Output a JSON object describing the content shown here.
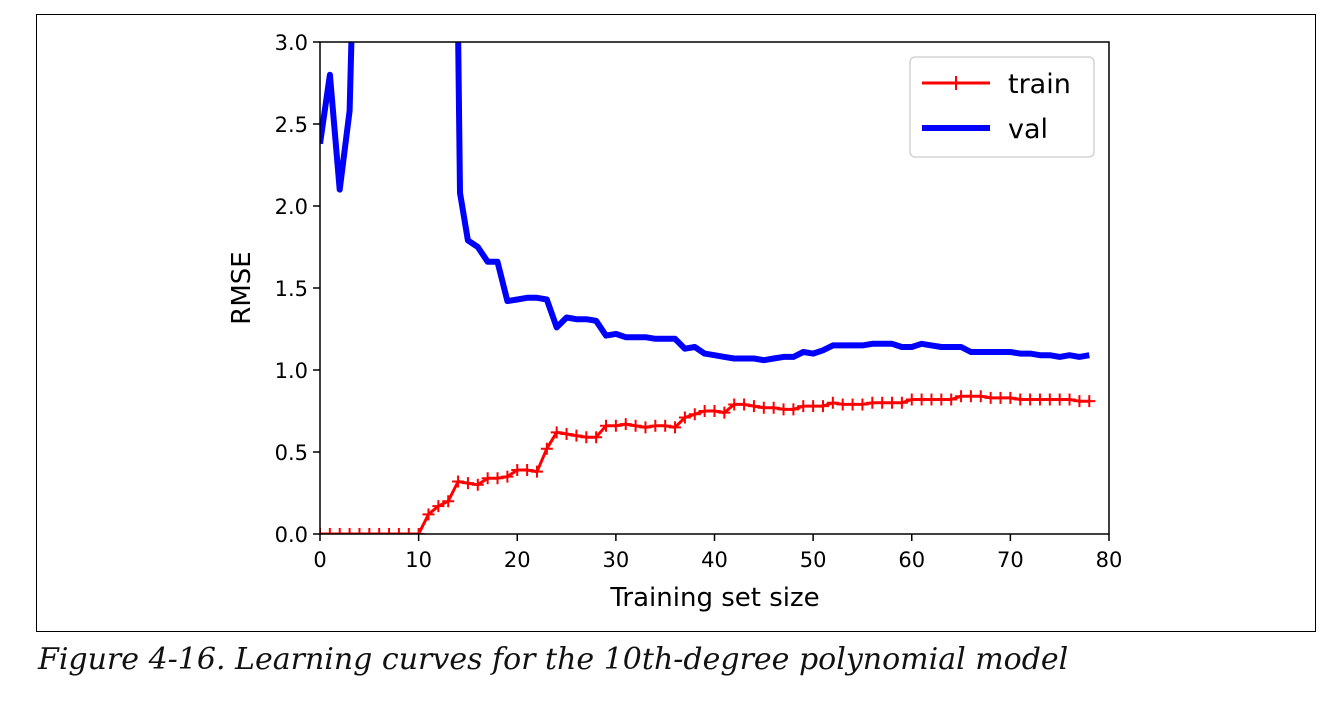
{
  "caption": "Figure 4-16. Learning curves for the 10th-degree polynomial model",
  "chart_data": {
    "type": "line",
    "xlabel": "Training set size",
    "ylabel": "RMSE",
    "xlim": [
      0,
      80
    ],
    "ylim": [
      0,
      3.0
    ],
    "x_ticks": [
      "0",
      "10",
      "20",
      "30",
      "40",
      "50",
      "60",
      "70",
      "80"
    ],
    "y_ticks": [
      "0.0",
      "0.5",
      "1.0",
      "1.5",
      "2.0",
      "2.5",
      "3.0"
    ],
    "grid": false,
    "legend_position": "top-right",
    "series": [
      {
        "name": "train",
        "color": "#ff0000",
        "marker": "plus",
        "x": [
          0,
          1,
          2,
          3,
          4,
          5,
          6,
          7,
          8,
          9,
          10,
          11,
          12,
          13,
          14,
          15,
          16,
          17,
          18,
          19,
          20,
          21,
          22,
          23,
          24,
          25,
          26,
          27,
          28,
          29,
          30,
          31,
          32,
          33,
          34,
          35,
          36,
          37,
          38,
          39,
          40,
          41,
          42,
          43,
          44,
          45,
          46,
          47,
          48,
          49,
          50,
          51,
          52,
          53,
          54,
          55,
          56,
          57,
          58,
          59,
          60,
          61,
          62,
          63,
          64,
          65,
          66,
          67,
          68,
          69,
          70,
          71,
          72,
          73,
          74,
          75,
          76,
          77,
          78
        ],
        "y": [
          0,
          0,
          0,
          0,
          0,
          0,
          0,
          0,
          0,
          0,
          0,
          0.12,
          0.17,
          0.2,
          0.32,
          0.31,
          0.3,
          0.34,
          0.34,
          0.35,
          0.39,
          0.39,
          0.38,
          0.52,
          0.62,
          0.61,
          0.6,
          0.59,
          0.59,
          0.66,
          0.66,
          0.67,
          0.66,
          0.65,
          0.66,
          0.66,
          0.65,
          0.71,
          0.73,
          0.75,
          0.75,
          0.74,
          0.79,
          0.79,
          0.78,
          0.77,
          0.77,
          0.76,
          0.76,
          0.78,
          0.78,
          0.78,
          0.8,
          0.79,
          0.79,
          0.79,
          0.8,
          0.8,
          0.8,
          0.8,
          0.82,
          0.82,
          0.82,
          0.82,
          0.82,
          0.84,
          0.84,
          0.84,
          0.83,
          0.83,
          0.83,
          0.82,
          0.82,
          0.82,
          0.82,
          0.82,
          0.82,
          0.81,
          0.81
        ]
      },
      {
        "name": "val",
        "color": "#0000ff",
        "marker": "none",
        "x": [
          0,
          1,
          2,
          3,
          3.2,
          14,
          14.2,
          15,
          16,
          17,
          18,
          19,
          20,
          21,
          22,
          23,
          24,
          25,
          26,
          27,
          28,
          29,
          30,
          31,
          32,
          33,
          34,
          35,
          36,
          37,
          38,
          39,
          40,
          41,
          42,
          43,
          44,
          45,
          46,
          47,
          48,
          49,
          50,
          51,
          52,
          53,
          54,
          55,
          56,
          57,
          58,
          59,
          60,
          61,
          62,
          63,
          64,
          65,
          66,
          67,
          68,
          69,
          70,
          71,
          72,
          73,
          74,
          75,
          76,
          77,
          78
        ],
        "y": [
          2.38,
          2.8,
          2.1,
          2.58,
          3.05,
          3.05,
          2.08,
          1.79,
          1.75,
          1.66,
          1.66,
          1.42,
          1.43,
          1.44,
          1.44,
          1.43,
          1.26,
          1.32,
          1.31,
          1.31,
          1.3,
          1.21,
          1.22,
          1.2,
          1.2,
          1.2,
          1.19,
          1.19,
          1.19,
          1.13,
          1.14,
          1.1,
          1.09,
          1.08,
          1.07,
          1.07,
          1.07,
          1.06,
          1.07,
          1.08,
          1.08,
          1.11,
          1.1,
          1.12,
          1.15,
          1.15,
          1.15,
          1.15,
          1.16,
          1.16,
          1.16,
          1.14,
          1.14,
          1.16,
          1.15,
          1.14,
          1.14,
          1.14,
          1.11,
          1.11,
          1.11,
          1.11,
          1.11,
          1.1,
          1.1,
          1.09,
          1.09,
          1.08,
          1.09,
          1.08,
          1.09
        ]
      }
    ]
  }
}
